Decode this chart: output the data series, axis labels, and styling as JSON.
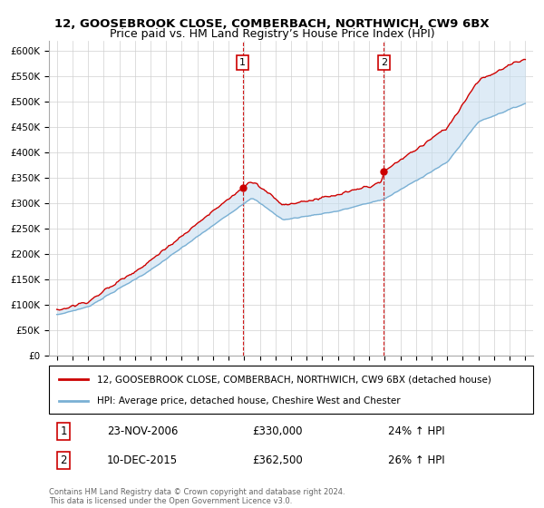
{
  "title": "12, GOOSEBROOK CLOSE, COMBERBACH, NORTHWICH, CW9 6BX",
  "subtitle": "Price paid vs. HM Land Registry’s House Price Index (HPI)",
  "ylim": [
    0,
    620000
  ],
  "yticks": [
    0,
    50000,
    100000,
    150000,
    200000,
    250000,
    300000,
    350000,
    400000,
    450000,
    500000,
    550000,
    600000
  ],
  "ytick_labels": [
    "£0",
    "£50K",
    "£100K",
    "£150K",
    "£200K",
    "£250K",
    "£300K",
    "£350K",
    "£400K",
    "£450K",
    "£500K",
    "£550K",
    "£600K"
  ],
  "xlim_left": 1994.5,
  "xlim_right": 2025.5,
  "sale1_date": 2006.9,
  "sale1_price": 330000,
  "sale1_label": "1",
  "sale1_display": "23-NOV-2006",
  "sale1_pct": "24%",
  "sale2_date": 2015.95,
  "sale2_price": 362500,
  "sale2_label": "2",
  "sale2_display": "10-DEC-2015",
  "sale2_pct": "26%",
  "property_line_color": "#cc0000",
  "hpi_line_color": "#7ab0d4",
  "hpi_fill_color": "#c8dff0",
  "marker_box_color": "#cc0000",
  "vline_color": "#cc0000",
  "legend_property": "12, GOOSEBROOK CLOSE, COMBERBACH, NORTHWICH, CW9 6BX (detached house)",
  "legend_hpi": "HPI: Average price, detached house, Cheshire West and Chester",
  "footnote": "Contains HM Land Registry data © Crown copyright and database right 2024.\nThis data is licensed under the Open Government Licence v3.0.",
  "title_fontsize": 9.5,
  "tick_fontsize": 7.5,
  "legend_fontsize": 7.5,
  "annot_fontsize": 8.5
}
